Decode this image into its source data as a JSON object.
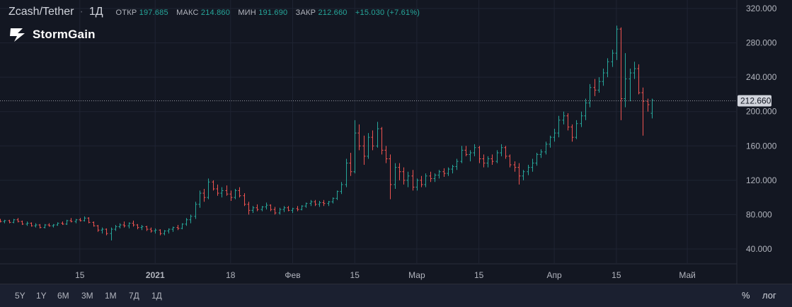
{
  "header": {
    "symbol": "Zcash/Tether",
    "interval": "1Д",
    "open_label": "ОТКР",
    "open_value": "197.685",
    "high_label": "МАКС",
    "high_value": "214.860",
    "low_label": "МИН",
    "low_value": "191.690",
    "close_label": "ЗАКР",
    "close_value": "212.660",
    "change_value": "+15.030 (+7.61%)"
  },
  "logo": {
    "text": "StormGain"
  },
  "timeframes": [
    "5Y",
    "1Y",
    "6M",
    "3M",
    "1M",
    "7Д",
    "1Д"
  ],
  "controls": {
    "percent": "%",
    "log": "лог"
  },
  "colors": {
    "background": "#131722",
    "up": "#26a69a",
    "down": "#ef5350",
    "grid": "#1f2433",
    "text": "#b2b5be",
    "price_line": "#9598a1"
  },
  "chart_data": {
    "type": "ohlc",
    "title": "Zcash/Tether",
    "ylim": [
      20,
      330
    ],
    "y_ticks": [
      40,
      80,
      120,
      160,
      200,
      240,
      280,
      320
    ],
    "y_tick_labels": [
      "40.000",
      "80.000",
      "120.000",
      "160.000",
      "200.000",
      "240.000",
      "280.000",
      "320.000"
    ],
    "x_tick_labels": [
      "15",
      "2021",
      "18",
      "Фев",
      "15",
      "Мар",
      "15",
      "Апр",
      "15",
      "Май"
    ],
    "x_tick_dates": [
      "2020-12-15",
      "2021-01-01",
      "2021-01-18",
      "2021-02-01",
      "2021-02-15",
      "2021-03-01",
      "2021-03-15",
      "2021-04-01",
      "2021-04-15",
      "2021-05-01"
    ],
    "x_range": [
      "2020-11-27",
      "2021-05-12"
    ],
    "last_price": 212.66,
    "last_price_label": "212.660",
    "grid": true,
    "start_date": "2020-11-27",
    "bars": [
      [
        74,
        75,
        71,
        72
      ],
      [
        72,
        74,
        70,
        73
      ],
      [
        73,
        74,
        70,
        71
      ],
      [
        71,
        75,
        70,
        74
      ],
      [
        74,
        76,
        71,
        72
      ],
      [
        72,
        73,
        68,
        69
      ],
      [
        69,
        72,
        67,
        70
      ],
      [
        70,
        71,
        66,
        67
      ],
      [
        67,
        70,
        65,
        68
      ],
      [
        68,
        69,
        64,
        65
      ],
      [
        65,
        69,
        64,
        68
      ],
      [
        68,
        70,
        66,
        67
      ],
      [
        67,
        69,
        65,
        68
      ],
      [
        68,
        71,
        67,
        70
      ],
      [
        70,
        72,
        68,
        69
      ],
      [
        69,
        74,
        68,
        73
      ],
      [
        73,
        76,
        71,
        72
      ],
      [
        72,
        75,
        70,
        74
      ],
      [
        74,
        76,
        72,
        73
      ],
      [
        73,
        78,
        72,
        76
      ],
      [
        76,
        77,
        70,
        71
      ],
      [
        71,
        72,
        66,
        67
      ],
      [
        67,
        68,
        60,
        62
      ],
      [
        62,
        65,
        58,
        63
      ],
      [
        63,
        64,
        56,
        58
      ],
      [
        58,
        65,
        50,
        63
      ],
      [
        63,
        68,
        61,
        66
      ],
      [
        66,
        70,
        64,
        68
      ],
      [
        68,
        72,
        65,
        67
      ],
      [
        67,
        71,
        64,
        70
      ],
      [
        70,
        73,
        66,
        68
      ],
      [
        68,
        69,
        63,
        65
      ],
      [
        65,
        68,
        62,
        66
      ],
      [
        66,
        67,
        61,
        63
      ],
      [
        63,
        65,
        59,
        61
      ],
      [
        61,
        64,
        58,
        62
      ],
      [
        62,
        63,
        56,
        58
      ],
      [
        58,
        62,
        56,
        61
      ],
      [
        61,
        64,
        58,
        63
      ],
      [
        63,
        66,
        60,
        65
      ],
      [
        65,
        68,
        62,
        64
      ],
      [
        64,
        70,
        63,
        69
      ],
      [
        69,
        76,
        67,
        74
      ],
      [
        74,
        80,
        70,
        78
      ],
      [
        78,
        95,
        75,
        92
      ],
      [
        92,
        108,
        88,
        105
      ],
      [
        105,
        110,
        95,
        100
      ],
      [
        100,
        122,
        98,
        118
      ],
      [
        118,
        120,
        108,
        110
      ],
      [
        110,
        115,
        102,
        105
      ],
      [
        105,
        112,
        100,
        108
      ],
      [
        108,
        114,
        102,
        104
      ],
      [
        104,
        108,
        96,
        100
      ],
      [
        100,
        110,
        98,
        108
      ],
      [
        108,
        112,
        100,
        102
      ],
      [
        102,
        105,
        90,
        92
      ],
      [
        92,
        95,
        80,
        85
      ],
      [
        85,
        90,
        82,
        88
      ],
      [
        88,
        92,
        84,
        86
      ],
      [
        86,
        90,
        84,
        89
      ],
      [
        89,
        94,
        86,
        91
      ],
      [
        91,
        92,
        84,
        86
      ],
      [
        86,
        89,
        80,
        82
      ],
      [
        82,
        88,
        80,
        86
      ],
      [
        86,
        90,
        83,
        88
      ],
      [
        88,
        90,
        84,
        85
      ],
      [
        85,
        88,
        82,
        87
      ],
      [
        87,
        90,
        84,
        86
      ],
      [
        86,
        91,
        85,
        90
      ],
      [
        90,
        94,
        88,
        93
      ],
      [
        93,
        97,
        90,
        95
      ],
      [
        95,
        97,
        90,
        92
      ],
      [
        92,
        96,
        89,
        94
      ],
      [
        94,
        97,
        90,
        93
      ],
      [
        93,
        96,
        90,
        95
      ],
      [
        95,
        100,
        93,
        99
      ],
      [
        99,
        108,
        97,
        107
      ],
      [
        107,
        118,
        104,
        115
      ],
      [
        115,
        145,
        112,
        140
      ],
      [
        140,
        152,
        125,
        130
      ],
      [
        130,
        190,
        128,
        175
      ],
      [
        175,
        185,
        155,
        160
      ],
      [
        160,
        172,
        138,
        148
      ],
      [
        148,
        175,
        145,
        170
      ],
      [
        170,
        178,
        155,
        160
      ],
      [
        160,
        188,
        158,
        180
      ],
      [
        180,
        182,
        150,
        155
      ],
      [
        155,
        160,
        140,
        145
      ],
      [
        145,
        150,
        98,
        115
      ],
      [
        115,
        140,
        110,
        135
      ],
      [
        135,
        140,
        120,
        130
      ],
      [
        130,
        135,
        115,
        120
      ],
      [
        120,
        130,
        112,
        125
      ],
      [
        125,
        132,
        108,
        112
      ],
      [
        112,
        122,
        108,
        120
      ],
      [
        120,
        125,
        112,
        115
      ],
      [
        115,
        128,
        112,
        125
      ],
      [
        125,
        130,
        118,
        122
      ],
      [
        122,
        128,
        118,
        126
      ],
      [
        126,
        132,
        122,
        130
      ],
      [
        130,
        134,
        124,
        128
      ],
      [
        128,
        135,
        125,
        133
      ],
      [
        133,
        138,
        128,
        136
      ],
      [
        136,
        145,
        132,
        142
      ],
      [
        142,
        160,
        140,
        155
      ],
      [
        155,
        160,
        148,
        150
      ],
      [
        150,
        155,
        142,
        152
      ],
      [
        152,
        162,
        148,
        158
      ],
      [
        158,
        160,
        140,
        145
      ],
      [
        145,
        150,
        135,
        140
      ],
      [
        140,
        148,
        135,
        145
      ],
      [
        145,
        150,
        138,
        142
      ],
      [
        142,
        155,
        140,
        152
      ],
      [
        152,
        162,
        148,
        158
      ],
      [
        158,
        160,
        145,
        148
      ],
      [
        148,
        150,
        135,
        138
      ],
      [
        138,
        142,
        130,
        135
      ],
      [
        135,
        140,
        115,
        125
      ],
      [
        125,
        132,
        120,
        130
      ],
      [
        130,
        138,
        126,
        135
      ],
      [
        135,
        145,
        130,
        140
      ],
      [
        140,
        152,
        137,
        150
      ],
      [
        150,
        156,
        146,
        153
      ],
      [
        153,
        165,
        150,
        162
      ],
      [
        162,
        172,
        158,
        170
      ],
      [
        170,
        180,
        165,
        175
      ],
      [
        175,
        195,
        170,
        190
      ],
      [
        190,
        200,
        185,
        195
      ],
      [
        195,
        198,
        178,
        182
      ],
      [
        182,
        185,
        165,
        170
      ],
      [
        170,
        190,
        168,
        186
      ],
      [
        186,
        200,
        182,
        195
      ],
      [
        195,
        215,
        190,
        210
      ],
      [
        210,
        232,
        205,
        228
      ],
      [
        228,
        238,
        218,
        225
      ],
      [
        225,
        240,
        222,
        235
      ],
      [
        235,
        250,
        230,
        245
      ],
      [
        245,
        262,
        240,
        258
      ],
      [
        258,
        272,
        252,
        268
      ],
      [
        268,
        300,
        260,
        296
      ],
      [
        296,
        298,
        190,
        215
      ],
      [
        215,
        268,
        205,
        238
      ],
      [
        238,
        250,
        212,
        245
      ],
      [
        245,
        258,
        238,
        250
      ],
      [
        250,
        255,
        220,
        222
      ],
      [
        222,
        228,
        172,
        212
      ],
      [
        212,
        215,
        200,
        208
      ],
      [
        198,
        215,
        192,
        213
      ]
    ]
  }
}
